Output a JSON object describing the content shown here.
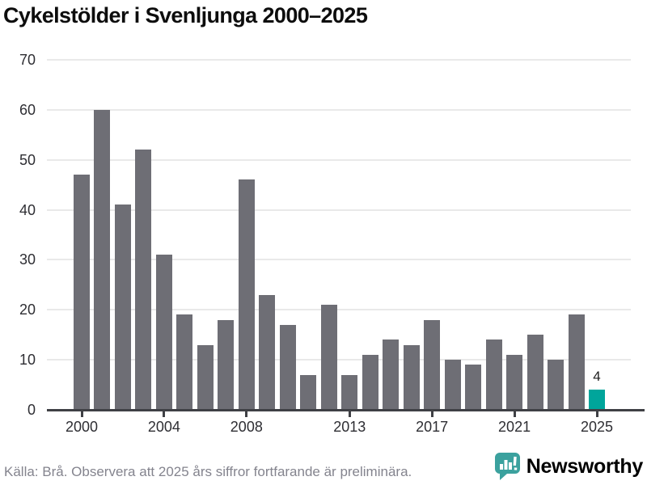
{
  "title": "Cykelstölder i Svenljunga 2000–2025",
  "footer": {
    "source_note": "Källa: Brå. Observera att 2025 års siffror fortfarande är preliminära.",
    "brand": "Newsworthy"
  },
  "colors": {
    "bar": "#6e6e75",
    "highlight": "#00a59b",
    "axis": "#3f4045",
    "grid": "#e9e9e9",
    "logo_teal": "#2ba29f",
    "title_text": "#0d0d0d",
    "tick_text": "#2e2e33",
    "footer_text": "#84848e"
  },
  "icons": {
    "logo_icon": "newsworthy-speech-bubble-bar-chart-icon"
  },
  "chart_data": {
    "type": "bar",
    "title": "Cykelstölder i Svenljunga 2000–2025",
    "xlabel": "",
    "ylabel": "",
    "categories": [
      2000,
      2001,
      2002,
      2003,
      2004,
      2005,
      2006,
      2007,
      2008,
      2009,
      2010,
      2011,
      2012,
      2013,
      2014,
      2015,
      2016,
      2017,
      2018,
      2019,
      2020,
      2021,
      2022,
      2023,
      2024,
      2025
    ],
    "values": [
      47,
      60,
      41,
      52,
      31,
      19,
      13,
      18,
      46,
      23,
      17,
      7,
      21,
      7,
      11,
      14,
      13,
      18,
      10,
      9,
      14,
      11,
      15,
      10,
      19,
      4
    ],
    "highlight_year": 2025,
    "highlight_value_label": "4",
    "ylim": [
      0,
      70
    ],
    "yticks": [
      0,
      10,
      20,
      30,
      40,
      50,
      60,
      70
    ],
    "xticks": [
      2000,
      2004,
      2008,
      2013,
      2017,
      2021,
      2025
    ],
    "grid": true,
    "legend": false
  }
}
